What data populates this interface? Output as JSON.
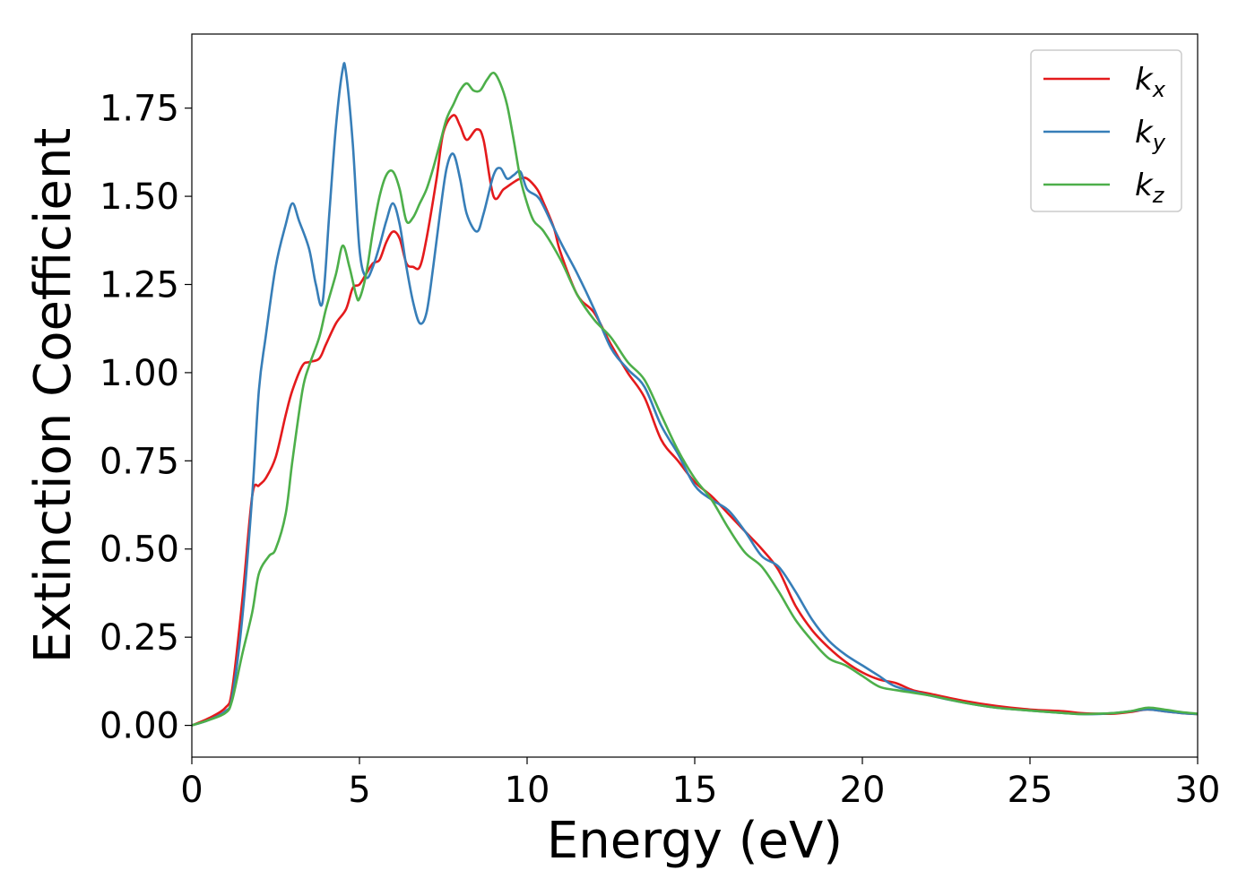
{
  "chart_data": {
    "type": "line",
    "xlabel": "Energy (eV)",
    "ylabel": "Extinction Coefficient",
    "xlim": [
      0,
      30
    ],
    "ylim": [
      -0.09,
      1.96
    ],
    "xticks": [
      0,
      5,
      10,
      15,
      20,
      25,
      30
    ],
    "xtick_labels": [
      "0",
      "5",
      "10",
      "15",
      "20",
      "25",
      "30"
    ],
    "yticks": [
      0,
      0.25,
      0.5,
      0.75,
      1.0,
      1.25,
      1.5,
      1.75
    ],
    "ytick_labels": [
      "0.00",
      "0.25",
      "0.50",
      "0.75",
      "1.00",
      "1.25",
      "1.50",
      "1.75"
    ],
    "grid": false,
    "legend_position": "top-right",
    "series": [
      {
        "name": "k",
        "subscript": "x",
        "color": "#e41a1c",
        "x": [
          0,
          0.5,
          1.0,
          1.2,
          1.5,
          1.8,
          2.0,
          2.2,
          2.5,
          2.8,
          3.0,
          3.3,
          3.5,
          3.8,
          4.0,
          4.3,
          4.6,
          4.8,
          5.0,
          5.2,
          5.4,
          5.6,
          5.8,
          6.0,
          6.2,
          6.4,
          6.6,
          6.8,
          7.0,
          7.3,
          7.5,
          7.8,
          8.0,
          8.2,
          8.5,
          8.7,
          9.0,
          9.3,
          9.6,
          9.8,
          10.0,
          10.3,
          10.5,
          10.8,
          11.0,
          11.5,
          12.0,
          12.5,
          13.0,
          13.5,
          14.0,
          14.5,
          15.0,
          15.5,
          16.0,
          16.5,
          17.0,
          17.5,
          18.0,
          18.5,
          19.0,
          19.5,
          20.0,
          20.5,
          21.0,
          21.5,
          22.0,
          23.0,
          24.0,
          25.0,
          26.0,
          26.5,
          27.0,
          27.5,
          28.0,
          28.5,
          29.0,
          29.5,
          30.0
        ],
        "y": [
          0.0,
          0.02,
          0.05,
          0.1,
          0.35,
          0.65,
          0.68,
          0.7,
          0.76,
          0.88,
          0.95,
          1.02,
          1.03,
          1.04,
          1.08,
          1.14,
          1.18,
          1.24,
          1.25,
          1.28,
          1.31,
          1.32,
          1.37,
          1.4,
          1.38,
          1.31,
          1.3,
          1.3,
          1.38,
          1.55,
          1.68,
          1.73,
          1.7,
          1.66,
          1.69,
          1.66,
          1.5,
          1.52,
          1.54,
          1.55,
          1.55,
          1.52,
          1.48,
          1.41,
          1.34,
          1.22,
          1.17,
          1.08,
          1.0,
          0.93,
          0.81,
          0.75,
          0.69,
          0.65,
          0.6,
          0.55,
          0.5,
          0.44,
          0.34,
          0.27,
          0.22,
          0.18,
          0.15,
          0.13,
          0.12,
          0.1,
          0.09,
          0.07,
          0.055,
          0.045,
          0.04,
          0.035,
          0.033,
          0.033,
          0.038,
          0.045,
          0.04,
          0.035,
          0.032
        ]
      },
      {
        "name": "k",
        "subscript": "y",
        "color": "#377eb8",
        "x": [
          0,
          0.5,
          1.0,
          1.2,
          1.5,
          1.8,
          2.0,
          2.2,
          2.5,
          2.8,
          3.0,
          3.2,
          3.5,
          3.7,
          3.9,
          4.1,
          4.3,
          4.5,
          4.6,
          4.8,
          5.0,
          5.2,
          5.4,
          5.6,
          5.8,
          6.0,
          6.2,
          6.4,
          6.6,
          6.8,
          7.0,
          7.2,
          7.4,
          7.6,
          7.8,
          8.0,
          8.2,
          8.5,
          8.7,
          9.0,
          9.2,
          9.4,
          9.6,
          9.8,
          10.0,
          10.3,
          10.5,
          11.0,
          11.5,
          12.0,
          12.5,
          13.0,
          13.5,
          14.0,
          14.5,
          15.0,
          15.5,
          16.0,
          16.5,
          17.0,
          17.5,
          18.0,
          18.5,
          19.0,
          19.5,
          20.0,
          20.5,
          21.0,
          22.0,
          23.0,
          24.0,
          25.0,
          26.0,
          26.5,
          27.0,
          27.5,
          28.0,
          28.5,
          29.0,
          29.5,
          30.0
        ],
        "y": [
          0.0,
          0.015,
          0.04,
          0.08,
          0.3,
          0.65,
          0.95,
          1.1,
          1.3,
          1.42,
          1.48,
          1.43,
          1.35,
          1.25,
          1.2,
          1.45,
          1.7,
          1.86,
          1.85,
          1.65,
          1.35,
          1.27,
          1.3,
          1.36,
          1.43,
          1.48,
          1.42,
          1.3,
          1.2,
          1.14,
          1.17,
          1.3,
          1.45,
          1.58,
          1.62,
          1.55,
          1.45,
          1.4,
          1.45,
          1.56,
          1.58,
          1.55,
          1.56,
          1.57,
          1.52,
          1.5,
          1.47,
          1.37,
          1.28,
          1.18,
          1.07,
          1.01,
          0.96,
          0.85,
          0.77,
          0.68,
          0.64,
          0.61,
          0.55,
          0.48,
          0.45,
          0.38,
          0.3,
          0.24,
          0.2,
          0.17,
          0.14,
          0.11,
          0.085,
          0.065,
          0.05,
          0.042,
          0.035,
          0.032,
          0.032,
          0.035,
          0.04,
          0.045,
          0.04,
          0.035,
          0.032
        ]
      },
      {
        "name": "k",
        "subscript": "z",
        "color": "#4daf4a",
        "x": [
          0,
          0.5,
          1.0,
          1.2,
          1.5,
          1.8,
          2.0,
          2.3,
          2.5,
          2.8,
          3.0,
          3.3,
          3.5,
          3.8,
          4.0,
          4.3,
          4.5,
          4.7,
          4.9,
          5.0,
          5.2,
          5.4,
          5.6,
          5.8,
          6.0,
          6.2,
          6.4,
          6.6,
          6.8,
          7.0,
          7.2,
          7.4,
          7.6,
          7.8,
          8.0,
          8.2,
          8.4,
          8.6,
          8.8,
          9.0,
          9.2,
          9.4,
          9.6,
          9.8,
          10.0,
          10.2,
          10.5,
          11.0,
          11.5,
          12.0,
          12.5,
          13.0,
          13.5,
          14.0,
          14.5,
          15.0,
          15.5,
          16.0,
          16.5,
          17.0,
          17.5,
          18.0,
          18.5,
          19.0,
          19.5,
          20.0,
          20.5,
          21.0,
          22.0,
          23.0,
          24.0,
          25.0,
          26.0,
          26.5,
          27.0,
          27.5,
          28.0,
          28.5,
          29.0,
          29.5,
          30.0
        ],
        "y": [
          0.0,
          0.015,
          0.035,
          0.07,
          0.2,
          0.32,
          0.43,
          0.48,
          0.5,
          0.6,
          0.75,
          0.95,
          1.02,
          1.1,
          1.18,
          1.28,
          1.36,
          1.3,
          1.22,
          1.21,
          1.28,
          1.4,
          1.5,
          1.56,
          1.57,
          1.52,
          1.43,
          1.44,
          1.48,
          1.52,
          1.58,
          1.65,
          1.72,
          1.76,
          1.8,
          1.82,
          1.8,
          1.8,
          1.83,
          1.85,
          1.82,
          1.76,
          1.66,
          1.55,
          1.48,
          1.43,
          1.4,
          1.32,
          1.22,
          1.15,
          1.1,
          1.03,
          0.98,
          0.88,
          0.78,
          0.7,
          0.64,
          0.56,
          0.49,
          0.45,
          0.38,
          0.3,
          0.24,
          0.19,
          0.17,
          0.14,
          0.11,
          0.1,
          0.085,
          0.065,
          0.05,
          0.042,
          0.035,
          0.032,
          0.033,
          0.035,
          0.04,
          0.05,
          0.045,
          0.038,
          0.033
        ]
      }
    ]
  }
}
